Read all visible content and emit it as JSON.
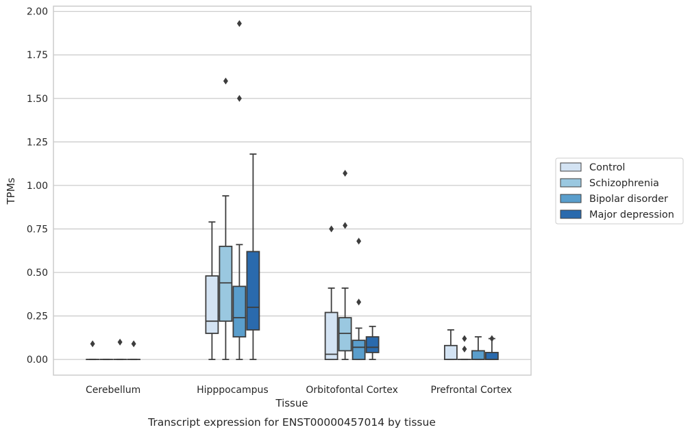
{
  "chart_data": {
    "type": "box",
    "xlabel": "Tissue",
    "ylabel": "TPMs",
    "caption": "Transcript expression for ENST00000457014 by tissue",
    "ylim": [
      -0.09,
      2.03
    ],
    "yticks": [
      "0.00",
      "0.25",
      "0.50",
      "0.75",
      "1.00",
      "1.25",
      "1.50",
      "1.75",
      "2.00"
    ],
    "ytick_values": [
      0,
      0.25,
      0.5,
      0.75,
      1.0,
      1.25,
      1.5,
      1.75,
      2.0
    ],
    "grid": "horizontal",
    "legend_position": "right",
    "categories": [
      "Cerebellum",
      "Hipppocampus",
      "Orbitofontal Cortex",
      "Prefrontal Cortex"
    ],
    "series": [
      {
        "name": "Control",
        "color": "#d3e3f3",
        "boxes": [
          {
            "q1": 0,
            "median": 0,
            "q3": 0,
            "whisker_low": 0,
            "whisker_high": 0,
            "outliers": [
              0.09
            ]
          },
          {
            "q1": 0.15,
            "median": 0.22,
            "q3": 0.48,
            "whisker_low": 0,
            "whisker_high": 0.79,
            "outliers": []
          },
          {
            "q1": 0,
            "median": 0.03,
            "q3": 0.27,
            "whisker_low": 0,
            "whisker_high": 0.41,
            "outliers": [
              0.75
            ]
          },
          {
            "q1": 0,
            "median": 0,
            "q3": 0.08,
            "whisker_low": 0,
            "whisker_high": 0.17,
            "outliers": []
          }
        ]
      },
      {
        "name": "Schizophrenia",
        "color": "#9ac8e0",
        "boxes": [
          {
            "q1": 0,
            "median": 0,
            "q3": 0,
            "whisker_low": 0,
            "whisker_high": 0,
            "outliers": []
          },
          {
            "q1": 0.22,
            "median": 0.44,
            "q3": 0.65,
            "whisker_low": 0,
            "whisker_high": 0.94,
            "outliers": [
              1.6
            ]
          },
          {
            "q1": 0.05,
            "median": 0.15,
            "q3": 0.24,
            "whisker_low": 0,
            "whisker_high": 0.41,
            "outliers": [
              1.07,
              0.77
            ]
          },
          {
            "q1": 0,
            "median": 0,
            "q3": 0,
            "whisker_low": 0,
            "whisker_high": 0,
            "outliers": [
              0.12,
              0.06
            ]
          }
        ]
      },
      {
        "name": "Bipolar disorder",
        "color": "#5a9ecc",
        "boxes": [
          {
            "q1": 0,
            "median": 0,
            "q3": 0,
            "whisker_low": 0,
            "whisker_high": 0,
            "outliers": [
              0.1
            ]
          },
          {
            "q1": 0.13,
            "median": 0.24,
            "q3": 0.42,
            "whisker_low": 0,
            "whisker_high": 0.66,
            "outliers": [
              1.93,
              1.5
            ]
          },
          {
            "q1": 0,
            "median": 0.07,
            "q3": 0.11,
            "whisker_low": 0,
            "whisker_high": 0.18,
            "outliers": [
              0.68,
              0.33
            ]
          },
          {
            "q1": 0,
            "median": 0,
            "q3": 0.05,
            "whisker_low": 0,
            "whisker_high": 0.13,
            "outliers": []
          }
        ]
      },
      {
        "name": "Major depression",
        "color": "#2a6aad",
        "boxes": [
          {
            "q1": 0,
            "median": 0,
            "q3": 0,
            "whisker_low": 0,
            "whisker_high": 0,
            "outliers": [
              0.09
            ]
          },
          {
            "q1": 0.17,
            "median": 0.3,
            "q3": 0.62,
            "whisker_low": 0,
            "whisker_high": 1.18,
            "outliers": []
          },
          {
            "q1": 0.04,
            "median": 0.07,
            "q3": 0.13,
            "whisker_low": 0,
            "whisker_high": 0.19,
            "outliers": []
          },
          {
            "q1": 0,
            "median": 0,
            "q3": 0.04,
            "whisker_low": 0,
            "whisker_high": 0.12,
            "outliers": [
              0.12
            ]
          }
        ]
      }
    ]
  }
}
